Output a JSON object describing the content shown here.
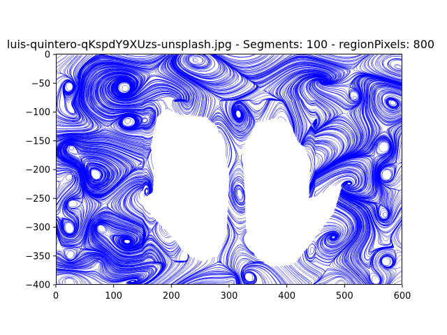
{
  "chart_data": {
    "type": "streamplot",
    "title": "luis-quintero-qKspdY9XUzs-unsplash.jpg - Segments: 100 - regionPixels: 800",
    "xlabel": "",
    "ylabel": "",
    "xlim": [
      0,
      600
    ],
    "ylim": [
      -400,
      0
    ],
    "x_ticks": [
      0,
      100,
      200,
      300,
      400,
      500,
      600
    ],
    "x_tick_labels": [
      "0",
      "100",
      "200",
      "300",
      "400",
      "500",
      "600"
    ],
    "y_ticks": [
      0,
      -50,
      -100,
      -150,
      -200,
      -250,
      -300,
      -350,
      -400
    ],
    "y_tick_labels": [
      "0",
      "−50",
      "−100",
      "−150",
      "−200",
      "−250",
      "−300",
      "−350",
      "−400"
    ],
    "grid": false,
    "line_color": "#0000ff",
    "background": "#ffffff",
    "empty_regions": [
      {
        "name": "left-hand",
        "outline": [
          [
            145,
            -253
          ],
          [
            168,
            -240
          ],
          [
            170,
            -205
          ],
          [
            165,
            -160
          ],
          [
            175,
            -110
          ],
          [
            192,
            -95
          ],
          [
            215,
            -105
          ],
          [
            260,
            -110
          ],
          [
            278,
            -125
          ],
          [
            290,
            -160
          ],
          [
            300,
            -205
          ],
          [
            296,
            -300
          ],
          [
            284,
            -345
          ],
          [
            255,
            -360
          ],
          [
            225,
            -345
          ],
          [
            205,
            -320
          ],
          [
            150,
            -262
          ]
        ]
      },
      {
        "name": "right-hand",
        "outline": [
          [
            495,
            -230
          ],
          [
            480,
            -228
          ],
          [
            455,
            -246
          ],
          [
            438,
            -250
          ],
          [
            440,
            -200
          ],
          [
            432,
            -165
          ],
          [
            418,
            -150
          ],
          [
            405,
            -118
          ],
          [
            378,
            -112
          ],
          [
            352,
            -118
          ],
          [
            335,
            -140
          ],
          [
            322,
            -165
          ],
          [
            326,
            -210
          ],
          [
            330,
            -300
          ],
          [
            345,
            -350
          ],
          [
            370,
            -368
          ],
          [
            410,
            -365
          ],
          [
            440,
            -330
          ],
          [
            480,
            -275
          ]
        ]
      }
    ],
    "vortices": [
      [
        25,
        -55
      ],
      [
        25,
        -160
      ],
      [
        25,
        -210
      ],
      [
        25,
        -260
      ],
      [
        25,
        -305
      ],
      [
        25,
        -355
      ],
      [
        25,
        -395
      ],
      [
        75,
        -300
      ],
      [
        75,
        -360
      ],
      [
        120,
        -60
      ],
      [
        125,
        -115
      ],
      [
        310,
        -390
      ],
      [
        330,
        -385
      ],
      [
        520,
        -75
      ],
      [
        570,
        -160
      ],
      [
        570,
        -210
      ],
      [
        570,
        -280
      ],
      [
        570,
        -360
      ],
      [
        555,
        -395
      ],
      [
        495,
        -395
      ]
    ]
  }
}
